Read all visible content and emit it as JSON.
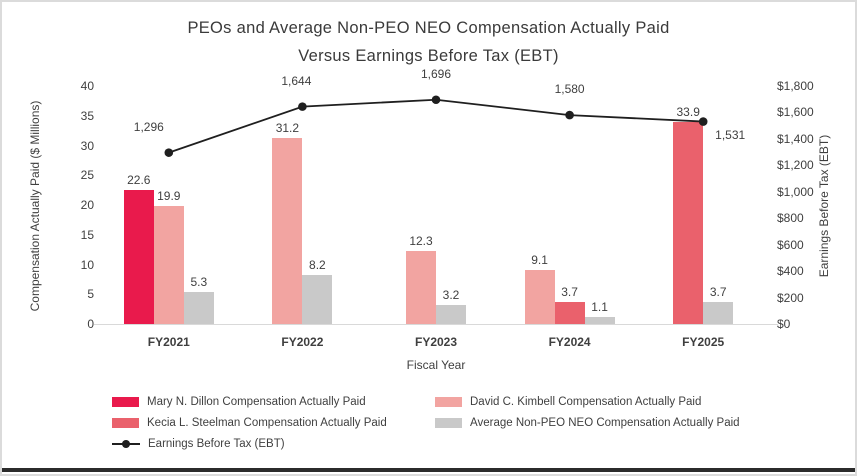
{
  "title": {
    "line1": "PEOs and Average Non-PEO NEO Compensation Actually Paid",
    "line2": "Versus Earnings Before Tax (EBT)"
  },
  "colors": {
    "dillon": "#E91A4C",
    "kimbell": "#F2A4A1",
    "steelman": "#EA616C",
    "avg": "#C9C9C9",
    "line": "#1F1F1F",
    "text": "#3F3F3F",
    "baseline": "#D9D9D9"
  },
  "chart_data": {
    "type": "bar+line",
    "categories": [
      "FY2021",
      "FY2022",
      "FY2023",
      "FY2024",
      "FY2025"
    ],
    "xlabel": "Fiscal Year",
    "left_axis": {
      "label": "Compensation Actually Paid ($ Millions)",
      "min": 0,
      "max": 40,
      "ticks": [
        "0",
        "5",
        "10",
        "15",
        "20",
        "25",
        "30",
        "35",
        "40"
      ]
    },
    "right_axis": {
      "label": "Earnings Before Tax (EBT)",
      "min": 0,
      "max": 1800,
      "ticks": [
        "$0",
        "$200",
        "$400",
        "$600",
        "$800",
        "$1,000",
        "$1,200",
        "$1,400",
        "$1,600",
        "$1,800"
      ]
    },
    "series": [
      {
        "name": "Mary N. Dillon Compensation Actually Paid",
        "color_key": "dillon",
        "values": [
          22.6,
          null,
          null,
          null,
          null
        ],
        "labels": [
          "22.6",
          "",
          "",
          "",
          ""
        ]
      },
      {
        "name": "David C. Kimbell Compensation Actually Paid",
        "color_key": "kimbell",
        "values": [
          19.9,
          31.2,
          12.3,
          9.1,
          null
        ],
        "labels": [
          "19.9",
          "31.2",
          "12.3",
          "9.1",
          ""
        ]
      },
      {
        "name": "Kecia L. Steelman Compensation Actually Paid",
        "color_key": "steelman",
        "values": [
          null,
          null,
          null,
          3.7,
          33.9
        ],
        "labels": [
          "",
          "",
          "",
          "3.7",
          "33.9"
        ]
      },
      {
        "name": "Average Non-PEO NEO Compensation Actually Paid",
        "color_key": "avg",
        "values": [
          5.3,
          8.2,
          3.2,
          1.1,
          3.7
        ],
        "labels": [
          "5.3",
          "8.2",
          "3.2",
          "1.1",
          "3.7"
        ]
      }
    ],
    "line_series": {
      "name": "Earnings Before Tax (EBT)",
      "values": [
        1296,
        1644,
        1696,
        1580,
        1531
      ],
      "labels": [
        "1,296",
        "1,644",
        "1,696",
        "1,580",
        "1,531"
      ]
    },
    "legend_position": "bottom",
    "grid": "baseline-only"
  },
  "legend": {
    "items": [
      {
        "key": "dillon",
        "type": "swatch",
        "label": "Mary N. Dillon Compensation Actually Paid"
      },
      {
        "key": "kimbell",
        "type": "swatch",
        "label": "David C. Kimbell Compensation Actually Paid"
      },
      {
        "key": "steelman",
        "type": "swatch",
        "label": "Kecia L. Steelman Compensation Actually Paid"
      },
      {
        "key": "avg",
        "type": "swatch",
        "label": "Average Non-PEO NEO Compensation Actually Paid"
      },
      {
        "key": "ebt",
        "type": "line",
        "label": "Earnings Before Tax (EBT)"
      }
    ]
  }
}
